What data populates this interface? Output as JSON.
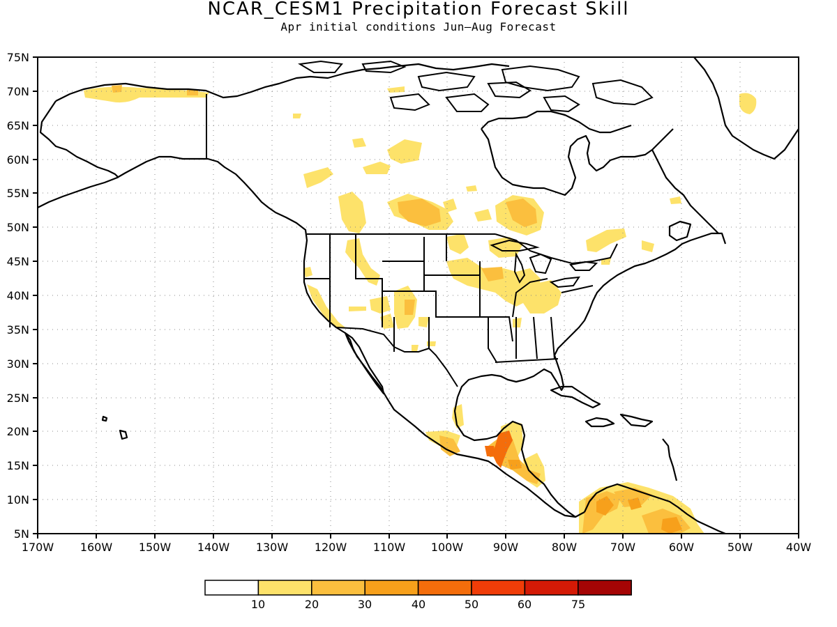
{
  "title": "NCAR_CESM1 Precipitation Forecast Skill",
  "subtitle": "Apr initial conditions  Jun–Aug Forecast",
  "map": {
    "lon_range": [
      -170,
      -40
    ],
    "lat_range": [
      5,
      75
    ],
    "lat_ticks": [
      "5N",
      "10N",
      "15N",
      "20N",
      "25N",
      "30N",
      "35N",
      "40N",
      "45N",
      "50N",
      "55N",
      "60N",
      "65N",
      "70N",
      "75N"
    ],
    "lon_ticks": [
      "170W",
      "160W",
      "150W",
      "140W",
      "130W",
      "120W",
      "110W",
      "100W",
      "90W",
      "80W",
      "70W",
      "60W",
      "50W",
      "40W"
    ],
    "grid": "dotted",
    "projection": "lat-lon"
  },
  "legend": {
    "labels": [
      "10",
      "20",
      "30",
      "40",
      "50",
      "60",
      "75"
    ],
    "colors": [
      "#ffffff",
      "#fde26a",
      "#fbbf3e",
      "#f7a01b",
      "#f46d0b",
      "#f03d08",
      "#d41a06",
      "#a50505"
    ]
  },
  "skill_regions": [
    {
      "region": "northern Alaska",
      "level": "10-20"
    },
    {
      "region": "Canadian prairies",
      "level": "10-20"
    },
    {
      "region": "Hudson Bay south",
      "level": "10-20"
    },
    {
      "region": "US interior west",
      "level": "10-20"
    },
    {
      "region": "US Midwest",
      "level": "10-20"
    },
    {
      "region": "Greenland east",
      "level": "10-20"
    },
    {
      "region": "Guatemala / Yucatan",
      "level": "40-50"
    },
    {
      "region": "Colombia / Venezuela",
      "level": "30-40"
    }
  ]
}
